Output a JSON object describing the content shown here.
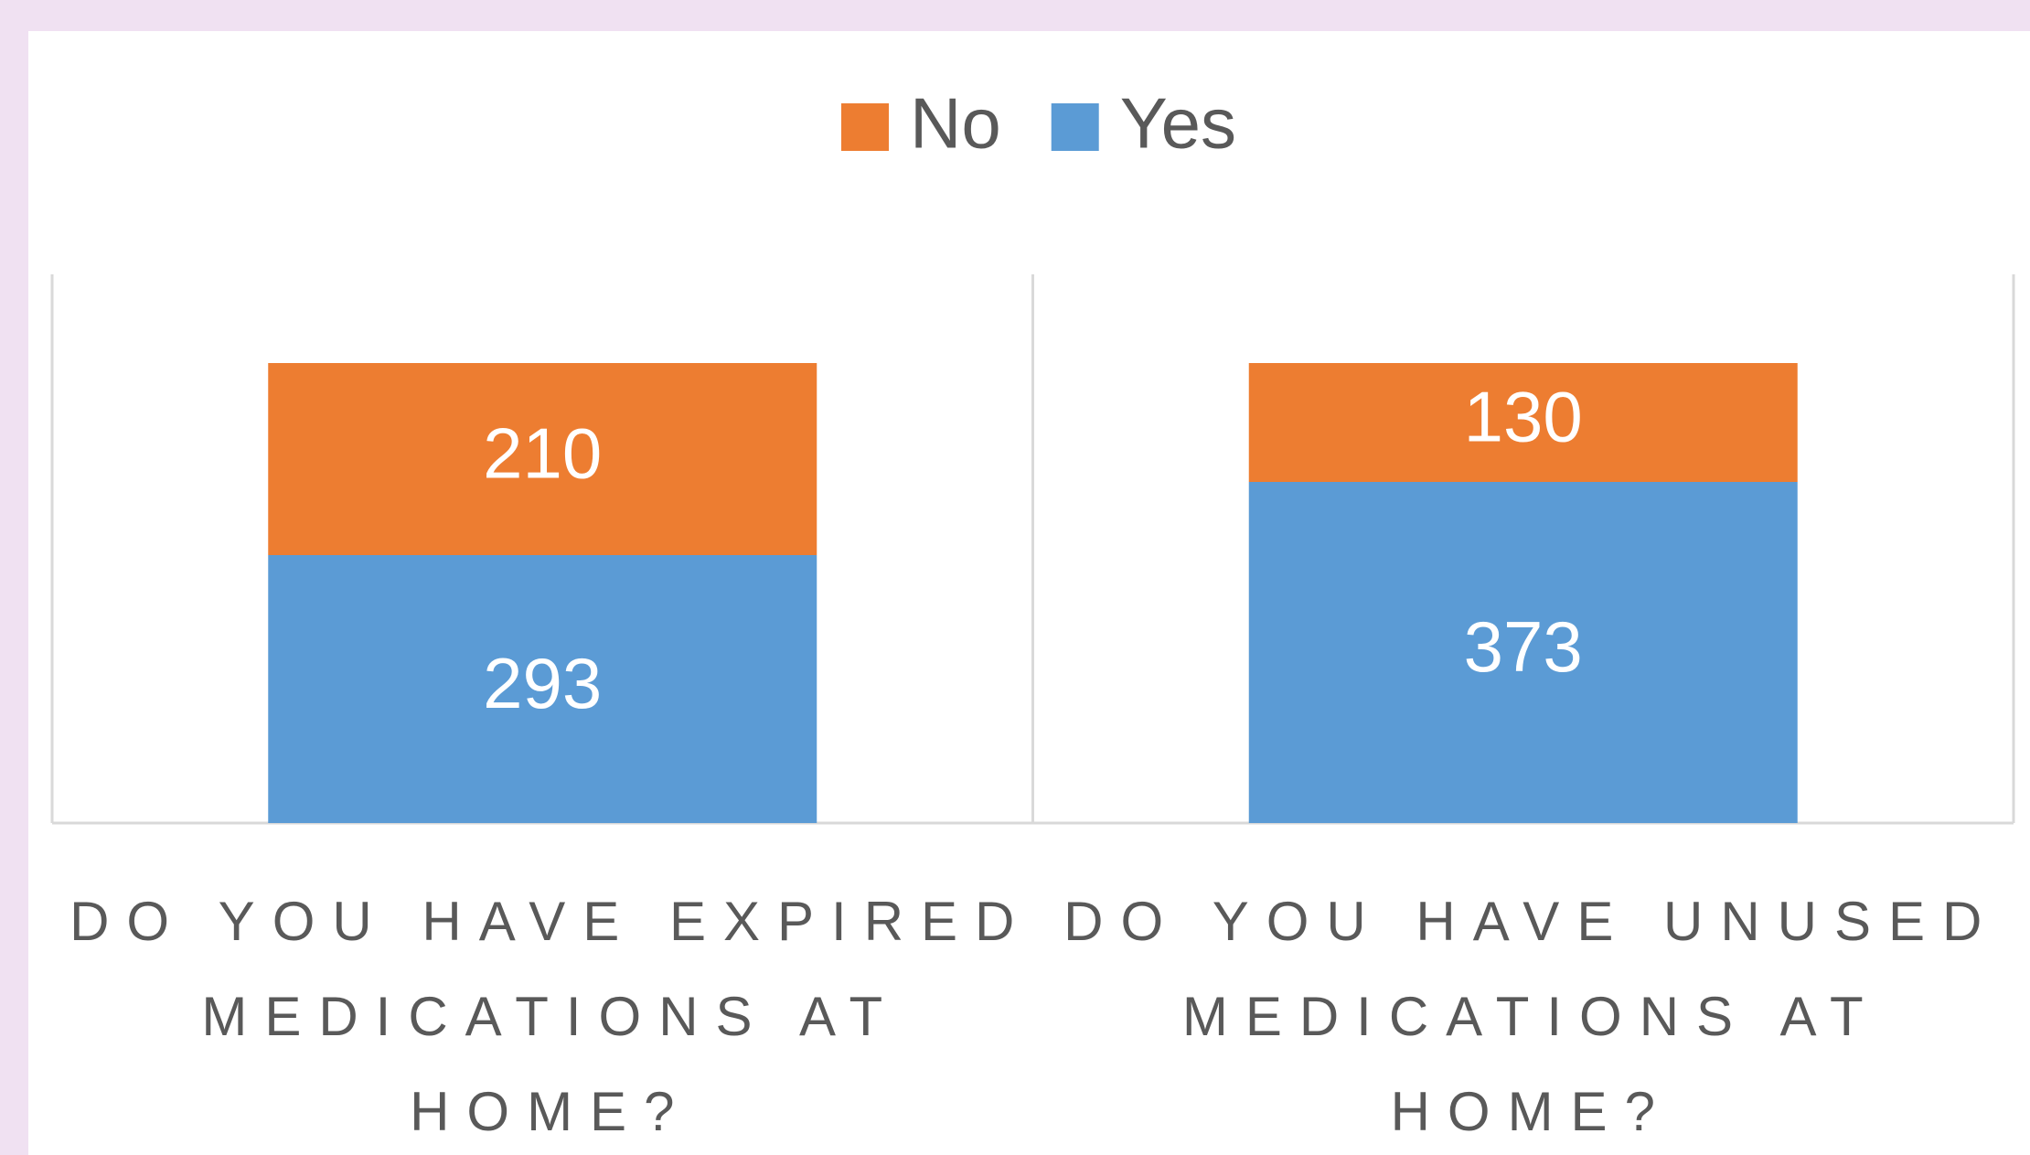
{
  "chart_data": {
    "type": "stacked_bar",
    "categories": [
      "DO YOU HAVE EXPIRED MEDICATIONS AT HOME?",
      "DO YOU HAVE UNUSED MEDICATIONS AT HOME?"
    ],
    "series": [
      {
        "name": "Yes",
        "color": "#5b9bd5",
        "values": [
          293,
          373
        ]
      },
      {
        "name": "No",
        "color": "#ed7d31",
        "values": [
          210,
          130
        ]
      }
    ],
    "ylim": [
      0,
      600
    ],
    "legend": "top"
  }
}
